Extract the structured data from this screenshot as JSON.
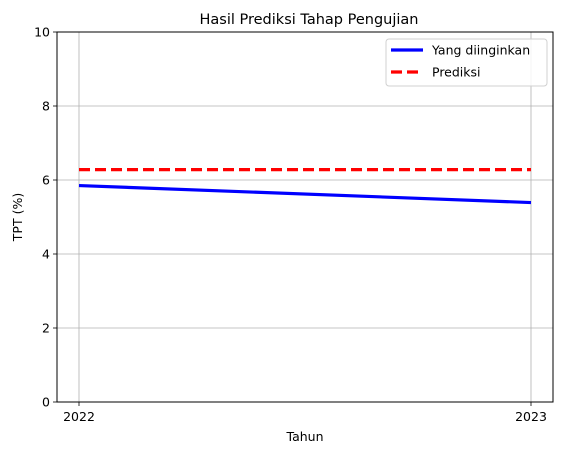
{
  "chart_data": {
    "type": "line",
    "title": "Hasil Prediksi Tahap Pengujian",
    "xlabel": "Tahun",
    "ylabel": "TPT (%)",
    "x": [
      "2022",
      "2023"
    ],
    "ylim": [
      0,
      10
    ],
    "yticks": [
      "0",
      "2",
      "4",
      "6",
      "8",
      "10"
    ],
    "grid": true,
    "legend_position": "top-right",
    "series": [
      {
        "name": "Yang diinginkan",
        "values": [
          5.85,
          5.39
        ],
        "color": "#0000ff",
        "style": "solid"
      },
      {
        "name": "Prediksi",
        "values": [
          6.28,
          6.28
        ],
        "color": "#ff0000",
        "style": "dashed"
      }
    ]
  }
}
